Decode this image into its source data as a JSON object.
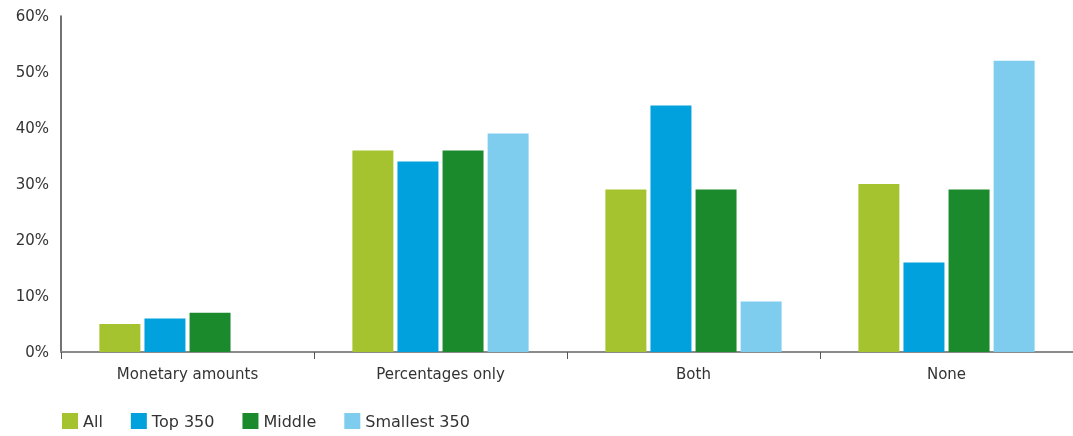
{
  "chart_data": {
    "type": "bar",
    "categories": [
      "Monetary amounts",
      "Percentages only",
      "Both",
      "None"
    ],
    "series": [
      {
        "name": "All",
        "color": "#a5c32e",
        "values": [
          5,
          36,
          29,
          30
        ]
      },
      {
        "name": "Top 350",
        "color": "#00a1dc",
        "values": [
          6,
          34,
          44,
          16
        ]
      },
      {
        "name": "Middle",
        "color": "#1a8a2c",
        "values": [
          7,
          36,
          29,
          29
        ]
      },
      {
        "name": "Smallest 350",
        "color": "#7ecdee",
        "values": [
          null,
          39,
          9,
          52
        ]
      }
    ],
    "ylim": [
      0,
      60
    ],
    "yticks": [
      {
        "value": 0,
        "label": "0%"
      },
      {
        "value": 10,
        "label": "10%"
      },
      {
        "value": 20,
        "label": "20%"
      },
      {
        "value": 30,
        "label": "30%"
      },
      {
        "value": 40,
        "label": "40%"
      },
      {
        "value": 50,
        "label": "50%"
      },
      {
        "value": 60,
        "label": "60%"
      }
    ],
    "grid": false,
    "legend": "bottom left"
  }
}
